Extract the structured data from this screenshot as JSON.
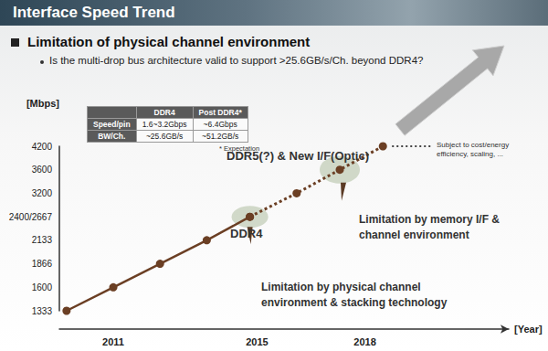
{
  "header": {
    "title": "Interface Speed Trend",
    "heading": "Limitation of physical channel environment",
    "bullet": "Is the multi-drop bus architecture valid to support >25.6GB/s/Ch. beyond DDR4?"
  },
  "table": {
    "columns": [
      "DDR4",
      "Post DDR4*"
    ],
    "rows": [
      {
        "label": "Speed/pin",
        "cells": [
          "1.6~3.2Gbps",
          "~6.4Gbps"
        ]
      },
      {
        "label": "BW/Ch.",
        "cells": [
          "~25.6GB/s",
          "~51.2GB/s"
        ]
      }
    ],
    "note": "* Expectation"
  },
  "chart_data": {
    "type": "line",
    "x_label": "[Year]",
    "y_label": "[Mbps]",
    "xlim": [
      2009.5,
      2022
    ],
    "xticks": [
      2011,
      2015,
      2018
    ],
    "ylim": [
      1333,
      4200
    ],
    "yticks": [
      1333,
      1600,
      1866,
      2133,
      {
        "value": 2400,
        "label": "2400/2667"
      },
      3200,
      3600,
      4200
    ],
    "grid": false,
    "series": [
      {
        "x": [
          2009.7,
          2011,
          2012.3,
          2013.6,
          2014.8
        ],
        "values": [
          1333,
          1600,
          1866,
          2133,
          2400
        ],
        "color": "#6b3f24",
        "marker": "circle",
        "line_style": "solid"
      },
      {
        "x": [
          2014.8,
          2016.1,
          2017.3,
          2018.5
        ],
        "values": [
          2400,
          3200,
          3600,
          4200
        ],
        "color": "#6b3f24",
        "marker": "circle",
        "line_style": "dotted"
      }
    ],
    "annotations": [
      "DDR4",
      "DDR5(?) & New I/F(Optic)",
      "Limitation by physical channel environment & stacking technology",
      "Limitation by memory I/F & channel environment",
      "Subject to cost/energy efficiency, scaling, ..."
    ]
  }
}
